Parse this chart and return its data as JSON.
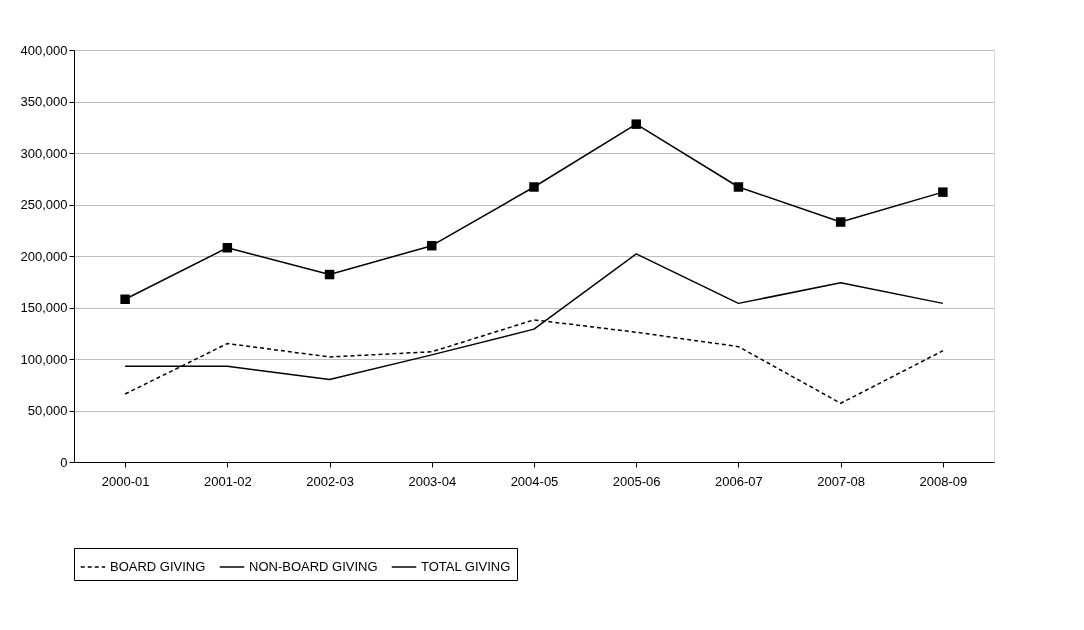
{
  "chart_data": {
    "type": "line",
    "categories": [
      "2000-01",
      "2001-02",
      "2002-03",
      "2003-04",
      "2004-05",
      "2005-06",
      "2006-07",
      "2007-08",
      "2008-09"
    ],
    "series": [
      {
        "name": "BOARD GIVING",
        "color": "#000000",
        "line_style": "dashed",
        "marker": "none",
        "values": [
          66000,
          115000,
          102000,
          107000,
          138000,
          126000,
          112000,
          57000,
          108000
        ]
      },
      {
        "name": "NON-BOARD GIVING",
        "color": "#000000",
        "line_style": "solid",
        "marker": "none",
        "values": [
          93000,
          93000,
          80000,
          104000,
          129000,
          202000,
          154000,
          174000,
          154000
        ]
      },
      {
        "name": "TOTAL GIVING",
        "color": "#000000",
        "line_style": "solid",
        "marker": "square",
        "values": [
          158000,
          208000,
          182000,
          210000,
          267000,
          328000,
          267000,
          233000,
          262000
        ]
      }
    ],
    "ylim": [
      0,
      400000
    ],
    "yticks": [
      0,
      {
        "value": 50000,
        "label": "50,000"
      },
      {
        "value": 100000,
        "label": "100,000"
      },
      {
        "value": 150000,
        "label": "150,000"
      },
      {
        "value": 200000,
        "label": "200,000"
      },
      {
        "value": 250000,
        "label": "250,000"
      },
      {
        "value": 300000,
        "label": "300,000"
      },
      {
        "value": 350000,
        "label": "350,000"
      },
      {
        "value": 400000,
        "label": "400,000"
      }
    ],
    "grid": "y",
    "legend": "bottom"
  }
}
